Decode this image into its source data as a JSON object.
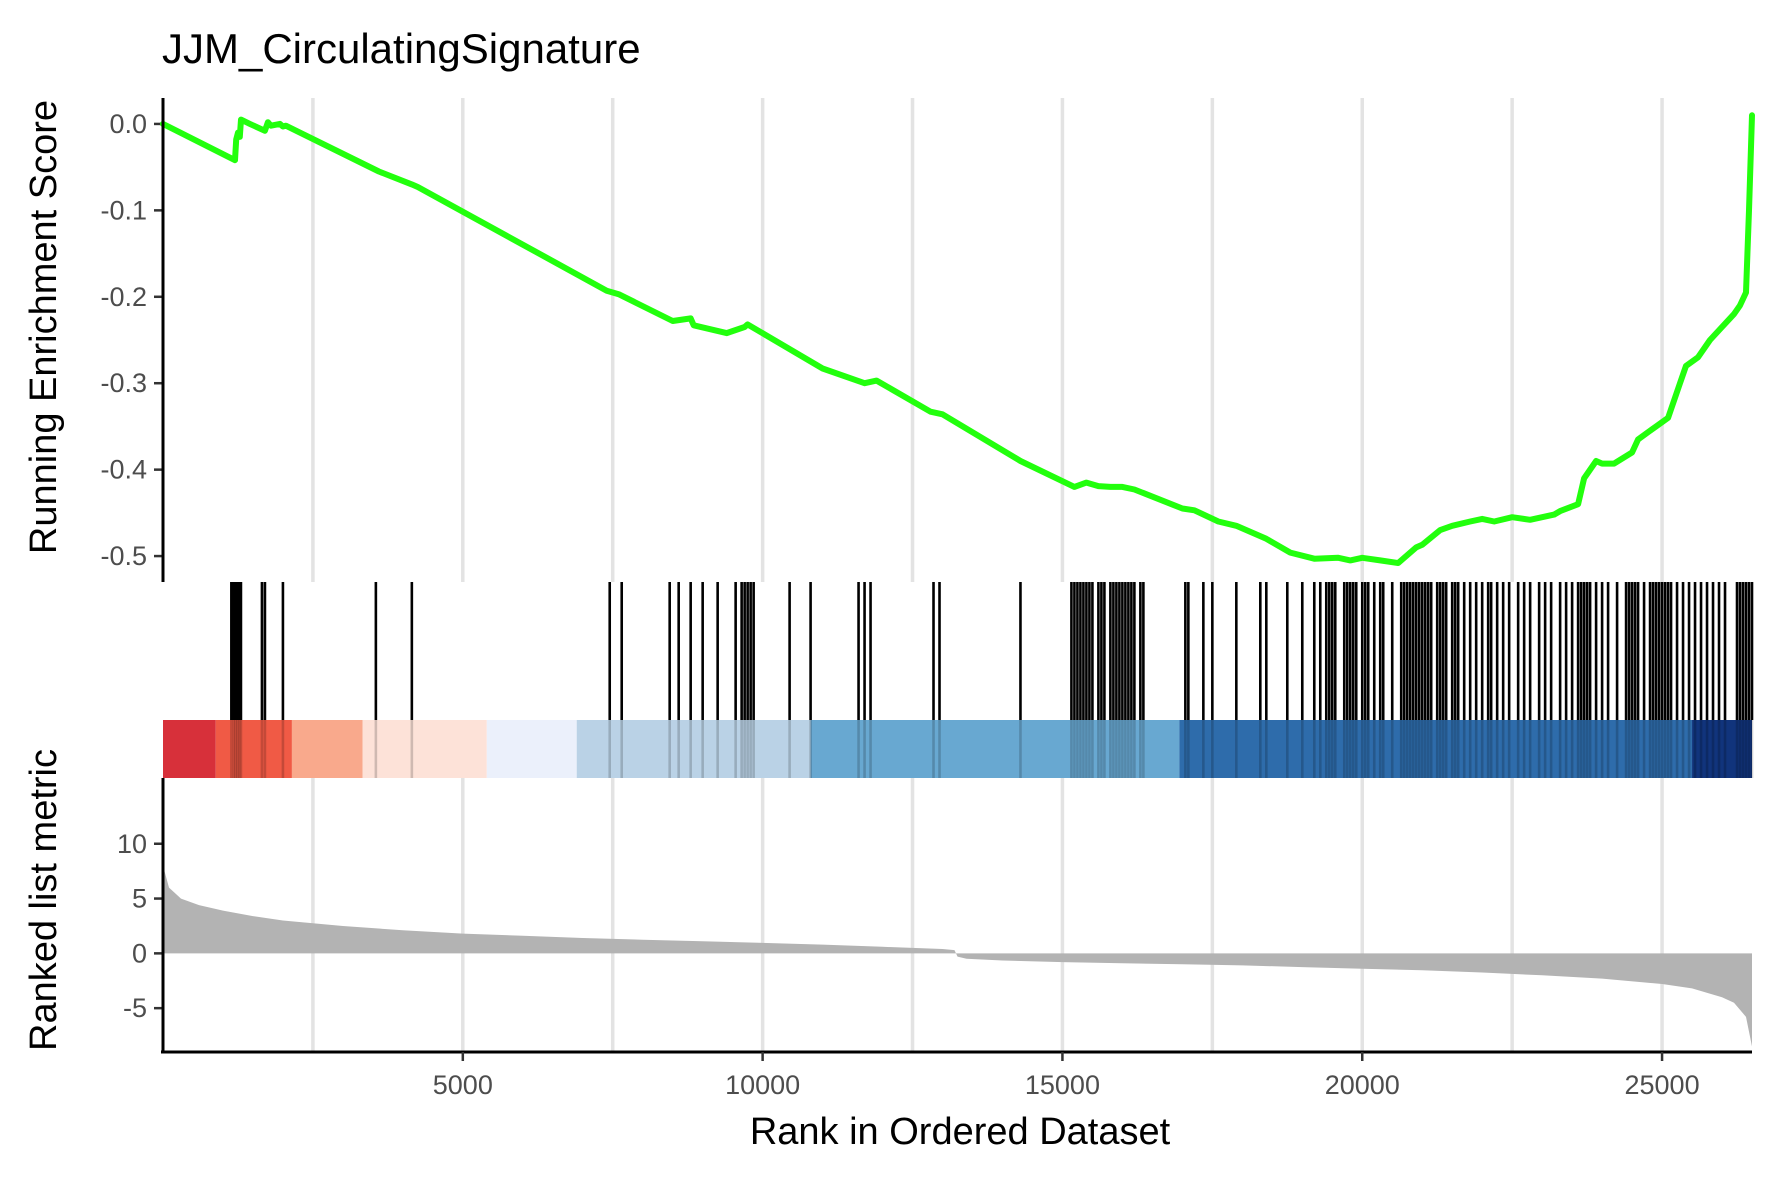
{
  "chart_data": {
    "type": "line",
    "title": "JJM_CirculatingSignature",
    "xlabel": "Rank in Ordered Dataset",
    "xlim": [
      0,
      26500
    ],
    "x_ticks": [
      5000,
      10000,
      15000,
      20000,
      25000
    ],
    "vertical_grid": [
      2500,
      5000,
      7500,
      10000,
      12500,
      15000,
      17500,
      20000,
      22500,
      25000
    ],
    "colors": {
      "running_es": "#22ff0d",
      "hits": "#000000",
      "metric_area": "#b3b3b3",
      "grid": "#e3e3e3"
    },
    "panels": [
      {
        "name": "running_enrichment_score",
        "ylabel": "Running Enrichment Score",
        "ylim": [
          -0.53,
          0.03
        ],
        "y_ticks": [
          0.0,
          -0.1,
          -0.2,
          -0.3,
          -0.4,
          -0.5
        ],
        "y_tick_labels": [
          "0.0",
          "-0.1",
          "-0.2",
          "-0.3",
          "-0.4",
          "-0.5"
        ],
        "series": [
          {
            "x": [
              0,
              1200,
              1220,
              1250,
              1280,
              1300,
              1450,
              1700,
              1750,
              1800,
              1950,
              2000,
              2050,
              3600,
              4150,
              4250,
              7400,
              7600,
              8500,
              8800,
              8850,
              9400,
              9700,
              9750,
              11000,
              11700,
              11900,
              12800,
              13000,
              14300,
              15200,
              15400,
              15600,
              15800,
              16000,
              16200,
              17000,
              17200,
              17600,
              17900,
              18400,
              18800,
              19200,
              19600,
              19800,
              20000,
              20300,
              20600,
              20900,
              21000,
              21300,
              21500,
              21800,
              22000,
              22200,
              22500,
              22800,
              23200,
              23300,
              23600,
              23700,
              23900,
              24000,
              24200,
              24500,
              24600,
              24900,
              25100,
              25300,
              25400,
              25600,
              25800,
              26000,
              26200,
              26300,
              26400,
              26450,
              26500
            ],
            "values": [
              0.0,
              -0.042,
              -0.018,
              -0.01,
              -0.015,
              0.005,
              0.0,
              -0.008,
              0.002,
              -0.002,
              0.0,
              -0.003,
              -0.002,
              -0.055,
              -0.07,
              -0.073,
              -0.193,
              -0.197,
              -0.228,
              -0.225,
              -0.233,
              -0.242,
              -0.235,
              -0.232,
              -0.283,
              -0.3,
              -0.297,
              -0.333,
              -0.336,
              -0.39,
              -0.42,
              -0.415,
              -0.419,
              -0.42,
              -0.42,
              -0.423,
              -0.445,
              -0.447,
              -0.46,
              -0.465,
              -0.48,
              -0.496,
              -0.503,
              -0.502,
              -0.505,
              -0.502,
              -0.505,
              -0.508,
              -0.49,
              -0.487,
              -0.47,
              -0.465,
              -0.46,
              -0.457,
              -0.46,
              -0.455,
              -0.458,
              -0.452,
              -0.448,
              -0.44,
              -0.41,
              -0.39,
              -0.393,
              -0.393,
              -0.38,
              -0.365,
              -0.35,
              -0.34,
              -0.3,
              -0.28,
              -0.27,
              -0.25,
              -0.235,
              -0.22,
              -0.21,
              -0.195,
              -0.1,
              0.01
            ]
          }
        ]
      },
      {
        "name": "gene_hits",
        "hit_positions": [
          1140,
          1180,
          1210,
          1240,
          1270,
          1300,
          1650,
          1700,
          2000,
          3550,
          4150,
          7450,
          7650,
          8450,
          8600,
          8800,
          9000,
          9250,
          9550,
          9650,
          9700,
          9750,
          9800,
          9850,
          10450,
          10800,
          11600,
          11700,
          11800,
          12850,
          12950,
          14300,
          15150,
          15200,
          15250,
          15300,
          15350,
          15400,
          15450,
          15500,
          15600,
          15650,
          15700,
          15800,
          15850,
          15900,
          15950,
          16000,
          16050,
          16100,
          16150,
          16200,
          16300,
          16350,
          17050,
          17100,
          17350,
          17500,
          17900,
          18300,
          18400,
          18750,
          19000,
          19200,
          19300,
          19400,
          19450,
          19500,
          19550,
          19700,
          19750,
          19800,
          19850,
          19900,
          20000,
          20050,
          20100,
          20200,
          20300,
          20350,
          20500,
          20650,
          20700,
          20750,
          20800,
          20850,
          20900,
          20950,
          21000,
          21050,
          21100,
          21150,
          21250,
          21300,
          21350,
          21400,
          21500,
          21550,
          21600,
          21700,
          21800,
          21900,
          22000,
          22100,
          22150,
          22250,
          22350,
          22450,
          22600,
          22700,
          22800,
          22950,
          23050,
          23150,
          23300,
          23400,
          23500,
          23600,
          23650,
          23700,
          23750,
          23800,
          23900,
          24000,
          24100,
          24250,
          24400,
          24450,
          24500,
          24550,
          24600,
          24700,
          24800,
          24850,
          24900,
          24950,
          25000,
          25050,
          25100,
          25150,
          25250,
          25350,
          25450,
          25550,
          25650,
          25750,
          25850,
          25950,
          26050,
          26250,
          26300,
          26350,
          26400,
          26450,
          26500
        ]
      },
      {
        "name": "ranked_list_metric",
        "ylabel": "Ranked list metric",
        "ylim": [
          -9,
          16
        ],
        "y_ticks": [
          10,
          5,
          0,
          -5
        ],
        "y_tick_labels": [
          "10",
          "5",
          "0",
          "-5"
        ],
        "color_band": [
          {
            "from": 0,
            "to": 880,
            "color": "#d7303a"
          },
          {
            "from": 880,
            "to": 2150,
            "color": "#f05a45"
          },
          {
            "from": 2150,
            "to": 3330,
            "color": "#f9a98c"
          },
          {
            "from": 3330,
            "to": 5400,
            "color": "#fde2d8"
          },
          {
            "from": 5400,
            "to": 6900,
            "color": "#ebf0fb"
          },
          {
            "from": 6900,
            "to": 10800,
            "color": "#bad2e6"
          },
          {
            "from": 10800,
            "to": 16950,
            "color": "#68a8d1"
          },
          {
            "from": 16950,
            "to": 25500,
            "color": "#2e6cab"
          },
          {
            "from": 25500,
            "to": 26500,
            "color": "#11347c"
          }
        ],
        "metric_x": [
          0,
          100,
          300,
          600,
          1000,
          1500,
          2000,
          3000,
          4000,
          5000,
          6000,
          7000,
          8000,
          9000,
          10000,
          11000,
          12000,
          13000,
          13200,
          13250,
          13400,
          14000,
          15000,
          16000,
          17000,
          18000,
          19000,
          20000,
          21000,
          22000,
          23000,
          24000,
          25000,
          25500,
          26000,
          26200,
          26400,
          26500
        ],
        "metric_values": [
          8.0,
          6.0,
          5.0,
          4.4,
          3.9,
          3.4,
          3.0,
          2.5,
          2.1,
          1.8,
          1.6,
          1.4,
          1.25,
          1.1,
          0.95,
          0.8,
          0.6,
          0.4,
          0.3,
          -0.3,
          -0.5,
          -0.65,
          -0.8,
          -0.9,
          -1.0,
          -1.1,
          -1.25,
          -1.4,
          -1.55,
          -1.75,
          -2.0,
          -2.3,
          -2.8,
          -3.2,
          -4.0,
          -4.5,
          -5.8,
          -8.5
        ]
      }
    ]
  }
}
